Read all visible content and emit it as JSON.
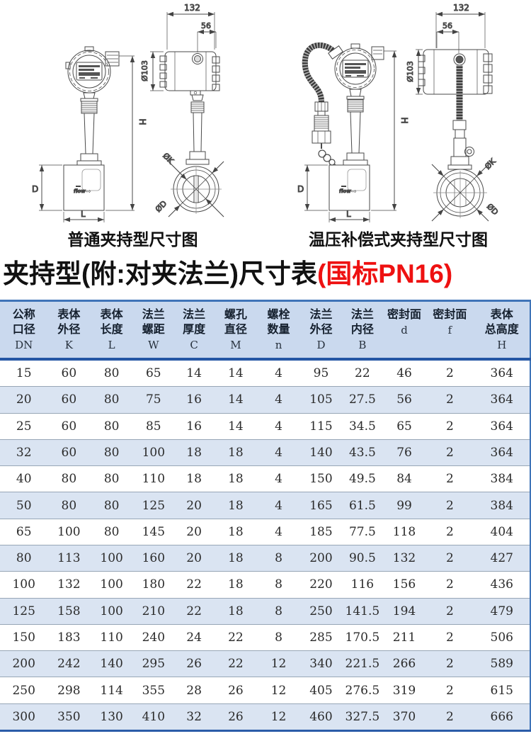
{
  "drawings": {
    "left": {
      "caption": "普通夹持型尺寸图",
      "dims": {
        "width_top": "132",
        "width_inner": "56",
        "housing_diameter": "Ø103",
        "total_height": "H",
        "body_height": "D",
        "body_length": "L",
        "flange_k": "ØK",
        "flange_d": "ØD",
        "flow": "flow",
        "flow_arrow": "⇨"
      }
    },
    "right": {
      "caption": "温压补偿式夹持型尺寸图",
      "dims": {
        "width_top": "132",
        "width_inner": "56",
        "housing_diameter": "Ø103",
        "total_height": "H",
        "body_height": "D",
        "body_length": "L",
        "flange_k": "ØK",
        "flange_d": "ØD",
        "flow": "flow",
        "flow_arrow": "⇨"
      }
    }
  },
  "title": {
    "main": "夹持型(附:对夹法兰)尺寸表",
    "highlight": "(国标PN16)"
  },
  "colors": {
    "title_highlight_red": "#ee1111",
    "table_header_bg": "#cad9ee",
    "table_alt_row_bg": "#dae4f2",
    "table_rule_dark_blue": "#2b5ca8",
    "table_rule_blue": "#3f74b8"
  },
  "table": {
    "columns": [
      {
        "line1": "公称",
        "line2": "口径",
        "letter": "DN"
      },
      {
        "line1": "表体",
        "line2": "外径",
        "letter": "K"
      },
      {
        "line1": "表体",
        "line2": "长度",
        "letter": "L"
      },
      {
        "line1": "法兰",
        "line2": "螺距",
        "letter": "W"
      },
      {
        "line1": "法兰",
        "line2": "厚度",
        "letter": "C"
      },
      {
        "line1": "螺孔",
        "line2": "直径",
        "letter": "M"
      },
      {
        "line1": "螺栓",
        "line2": "数量",
        "letter": "n"
      },
      {
        "line1": "法兰",
        "line2": "外径",
        "letter": "D"
      },
      {
        "line1": "法兰",
        "line2": "内径",
        "letter": "B"
      },
      {
        "line1": "",
        "line2": "密封面",
        "letter": "d"
      },
      {
        "line1": "",
        "line2": "密封面",
        "letter": "f"
      },
      {
        "line1": "表体",
        "line2": "总高度",
        "letter": "H"
      }
    ],
    "rows": [
      [
        "15",
        "60",
        "80",
        "65",
        "14",
        "14",
        "4",
        "95",
        "22",
        "46",
        "2",
        "364"
      ],
      [
        "20",
        "60",
        "80",
        "75",
        "16",
        "14",
        "4",
        "105",
        "27.5",
        "56",
        "2",
        "364"
      ],
      [
        "25",
        "60",
        "80",
        "85",
        "16",
        "14",
        "4",
        "115",
        "34.5",
        "65",
        "2",
        "364"
      ],
      [
        "32",
        "60",
        "80",
        "100",
        "18",
        "18",
        "4",
        "140",
        "43.5",
        "76",
        "2",
        "364"
      ],
      [
        "40",
        "80",
        "80",
        "110",
        "18",
        "18",
        "4",
        "150",
        "49.5",
        "84",
        "2",
        "384"
      ],
      [
        "50",
        "80",
        "80",
        "125",
        "20",
        "18",
        "4",
        "165",
        "61.5",
        "99",
        "2",
        "384"
      ],
      [
        "65",
        "100",
        "80",
        "145",
        "20",
        "18",
        "4",
        "185",
        "77.5",
        "118",
        "2",
        "404"
      ],
      [
        "80",
        "113",
        "100",
        "160",
        "20",
        "18",
        "8",
        "200",
        "90.5",
        "132",
        "2",
        "427"
      ],
      [
        "100",
        "132",
        "100",
        "180",
        "22",
        "18",
        "8",
        "220",
        "116",
        "156",
        "2",
        "436"
      ],
      [
        "125",
        "158",
        "100",
        "210",
        "22",
        "18",
        "8",
        "250",
        "141.5",
        "194",
        "2",
        "479"
      ],
      [
        "150",
        "183",
        "110",
        "240",
        "24",
        "22",
        "8",
        "285",
        "170.5",
        "211",
        "2",
        "506"
      ],
      [
        "200",
        "242",
        "140",
        "295",
        "26",
        "22",
        "12",
        "340",
        "221.5",
        "266",
        "2",
        "589"
      ],
      [
        "250",
        "298",
        "114",
        "355",
        "28",
        "26",
        "12",
        "405",
        "276.5",
        "319",
        "2",
        "615"
      ],
      [
        "300",
        "350",
        "130",
        "410",
        "32",
        "26",
        "12",
        "460",
        "327.5",
        "370",
        "2",
        "666"
      ]
    ]
  }
}
